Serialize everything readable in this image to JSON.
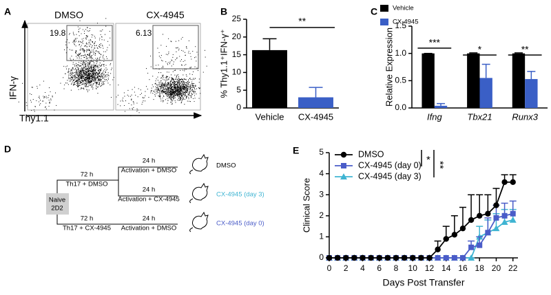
{
  "panel_a": {
    "label": "A",
    "titles": [
      "DMSO",
      "CX-4945"
    ],
    "gates": [
      "19.8",
      "6.13"
    ],
    "y_label": "IFN-γ",
    "x_label": "Thy1.1"
  },
  "panel_d": {
    "label": "D",
    "start": [
      "Naive",
      "2D2"
    ],
    "top": {
      "time": "72 h",
      "culture": "Th17 + DMSO"
    },
    "bottom": {
      "time": "72 h",
      "culture": "Th17 + CX-4945"
    },
    "arms": [
      {
        "time": "24 h",
        "step": "Activation + DMSO",
        "group": "DMSO"
      },
      {
        "time": "24 h",
        "step": "Activation + CX-4945",
        "group": "CX-4945 (day 3)"
      },
      {
        "time": "24 h",
        "step": "Activation + DMSO",
        "group": "CX-4945 (day 0)"
      }
    ]
  },
  "chart_data": [
    {
      "type": "bar",
      "panel": "B",
      "y_label": "% Thy1.1⁺IFN-γ⁺",
      "categories": [
        "Vehicle",
        "CX-4945"
      ],
      "values": [
        16.3,
        3.0
      ],
      "errors": [
        3.2,
        2.8
      ],
      "colors": [
        "#000000",
        "#3a5fc6"
      ],
      "ylim": [
        0,
        25
      ],
      "yticks": [
        0,
        5,
        10,
        15,
        20,
        25
      ],
      "significance": "**"
    },
    {
      "type": "bar",
      "panel": "C",
      "y_label": "Relative Expression",
      "categories": [
        "Ifng",
        "Tbx21",
        "Runx3"
      ],
      "category_font_style": "italic",
      "series": [
        {
          "name": "Vehicle",
          "color": "#000000",
          "values": [
            1.0,
            1.0,
            1.0
          ],
          "errors": [
            0.0,
            0.01,
            0.01
          ]
        },
        {
          "name": "CX-4945",
          "color": "#3a5fc6",
          "values": [
            0.04,
            0.55,
            0.53
          ],
          "errors": [
            0.04,
            0.25,
            0.14
          ]
        }
      ],
      "ylim": [
        0,
        1.5
      ],
      "yticks": [
        {
          "value": 0,
          "label": "0.0"
        },
        {
          "value": 0.5,
          "label": "0.5"
        },
        {
          "value": 1,
          "label": "1.0"
        },
        {
          "value": 1.5,
          "label": "1.5"
        }
      ],
      "significance": [
        "***",
        "*",
        "**"
      ]
    },
    {
      "type": "line",
      "panel": "E",
      "x_label": "Days Post Transfer",
      "y_label": "Clinical Score",
      "x": [
        0,
        1,
        2,
        3,
        4,
        5,
        6,
        7,
        8,
        9,
        10,
        11,
        12,
        13,
        14,
        15,
        16,
        17,
        18,
        19,
        20,
        21,
        22
      ],
      "series": [
        {
          "name": "DMSO",
          "color": "#000000",
          "marker": "circle",
          "values": [
            0,
            0,
            0,
            0,
            0,
            0,
            0,
            0,
            0,
            0,
            0,
            0,
            0,
            0.4,
            0.9,
            1.1,
            1.4,
            1.8,
            2.0,
            2.1,
            2.5,
            3.6,
            3.6
          ],
          "errors": [
            0,
            0,
            0,
            0,
            0,
            0,
            0,
            0,
            0,
            0,
            0,
            0,
            0,
            0.4,
            0.6,
            0.9,
            1.0,
            1.2,
            1.0,
            0.9,
            0.8,
            0.35,
            0.35
          ]
        },
        {
          "name": "CX-4945 (day 0)",
          "color": "#4a5cc8",
          "marker": "square",
          "values": [
            0,
            0,
            0,
            0,
            0,
            0,
            0,
            0,
            0,
            0,
            0,
            0,
            0,
            0,
            0,
            0,
            0,
            0.5,
            0.6,
            1.2,
            1.9,
            2.0,
            2.1
          ],
          "errors": [
            0,
            0,
            0,
            0,
            0,
            0,
            0,
            0,
            0,
            0,
            0,
            0,
            0,
            0,
            0,
            0,
            0,
            0.3,
            0.4,
            0.7,
            0.6,
            0.6,
            0.6
          ]
        },
        {
          "name": "CX-4945 (day 3)",
          "color": "#3fb4d2",
          "marker": "triangle",
          "values": [
            0,
            0,
            0,
            0,
            0,
            0,
            0,
            0,
            0,
            0,
            0,
            0,
            0,
            0,
            0,
            0,
            0,
            0,
            1.0,
            1.2,
            1.4,
            1.7,
            1.8
          ],
          "errors": [
            0,
            0,
            0,
            0,
            0,
            0,
            0,
            0,
            0,
            0,
            0,
            0,
            0,
            0,
            0,
            0,
            0,
            0,
            0.5,
            0.6,
            0.7,
            0.6,
            0.5
          ]
        }
      ],
      "xlim": [
        0,
        22.6
      ],
      "xticks": [
        0,
        2,
        4,
        6,
        8,
        10,
        12,
        14,
        16,
        18,
        20,
        22
      ],
      "ylim": [
        0,
        5
      ],
      "yticks": [
        0,
        1,
        2,
        3,
        4,
        5
      ],
      "significance": [
        "*",
        "**"
      ]
    }
  ]
}
